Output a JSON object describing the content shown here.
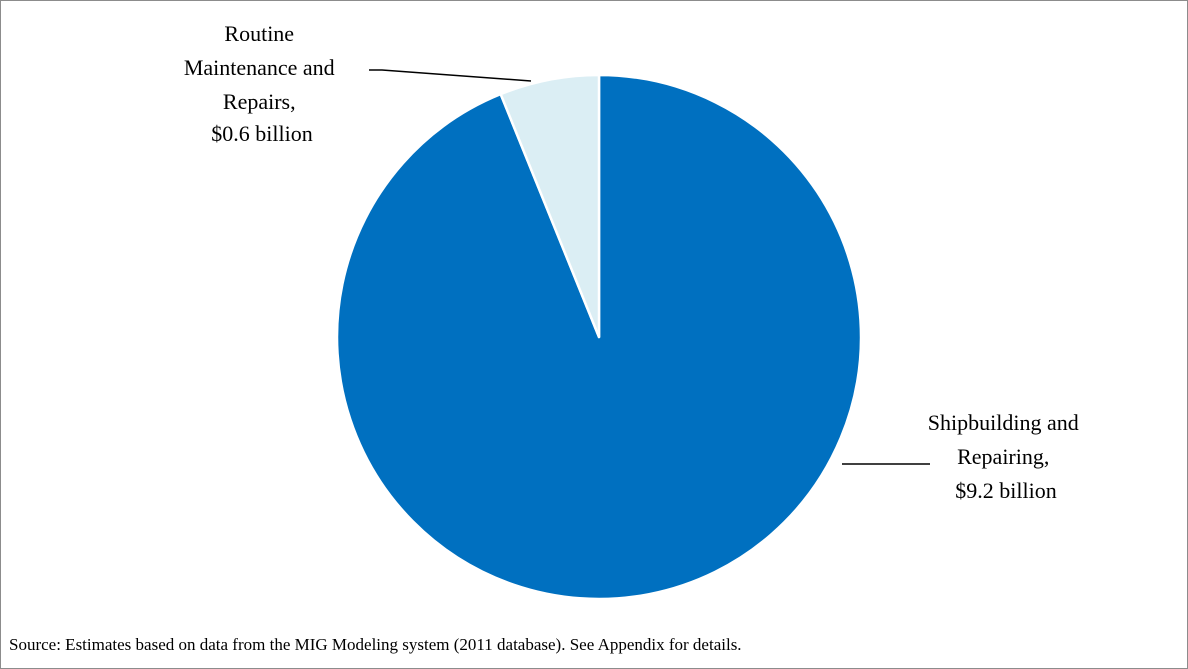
{
  "chart_data": {
    "type": "pie",
    "title": "",
    "slices": [
      {
        "name": "Shipbuilding and Repairing",
        "value": 9.2,
        "label_lines": [
          "Shipbuilding and",
          "Repairing,",
          "$9.2 billion"
        ],
        "color": "#0070c0"
      },
      {
        "name": "Routine Maintenance and Repairs",
        "value": 0.6,
        "label_lines": [
          "Routine",
          "Maintenance and",
          "Repairs,",
          "$0.6 billion"
        ],
        "color": "#dbeef4"
      }
    ],
    "slice_border_color": "#ffffff",
    "start_angle": "12 o'clock, counterclockwise"
  },
  "source_note": "Source: Estimates based on data from the MIG Modeling system (2011 database).  See Appendix for details."
}
